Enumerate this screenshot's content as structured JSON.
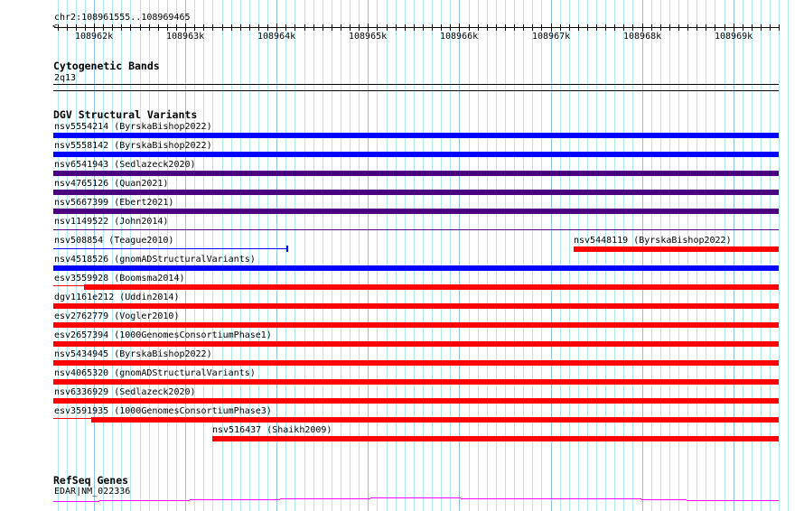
{
  "ruler": {
    "location": "chr2:108961555..108969465",
    "ticks": [
      "108962k",
      "108963k",
      "108964k",
      "108965k",
      "108966k",
      "108967k",
      "108968k",
      "108969k"
    ]
  },
  "cytobands": {
    "title": "Cytogenetic Bands",
    "band": "2q13"
  },
  "dgv": {
    "title": "DGV Structural Variants",
    "variants": [
      {
        "label": "nsv5554214 (ByrskaBishop2022)",
        "color": "#0000ff"
      },
      {
        "label": "nsv5558142 (ByrskaBishop2022)",
        "color": "#0000ff"
      },
      {
        "label": "nsv6541943 (Sedlazeck2020)",
        "color": "#4b0082"
      },
      {
        "label": "nsv4765126 (Quan2021)",
        "color": "#4b0082"
      },
      {
        "label": "nsv5667399 (Ebert2021)",
        "color": "#4b0082"
      },
      {
        "label": "nsv1149522 (John2014)",
        "color": "#4b0082"
      },
      {
        "label": "nsv508854 (Teague2010)",
        "color": "#0000ff"
      },
      {
        "label": "nsv5448119 (ByrskaBishop2022)",
        "color": "#ff0000"
      },
      {
        "label": "nsv4518526 (gnomADStructuralVariants)",
        "color": "#0000ff"
      },
      {
        "label": "esv3559928 (Boomsma2014)",
        "color": "#ff0000"
      },
      {
        "label": "dgv1161e212 (Uddin2014)",
        "color": "#ff0000"
      },
      {
        "label": "esv2762779 (Vogler2010)",
        "color": "#ff0000"
      },
      {
        "label": "esv2657394 (1000GenomesConsortiumPhase1)",
        "color": "#ff0000"
      },
      {
        "label": "nsv5434945 (ByrskaBishop2022)",
        "color": "#ff0000"
      },
      {
        "label": "nsv4065320 (gnomADStructuralVariants)",
        "color": "#ff0000"
      },
      {
        "label": "nsv6336929 (Sedlazeck2020)",
        "color": "#ff0000"
      },
      {
        "label": "esv3591935 (1000GenomesConsortiumPhase3)",
        "color": "#ff0000"
      },
      {
        "label": "nsv516437 (Shaikh2009)",
        "color": "#ff0000"
      }
    ]
  },
  "refseq": {
    "title": "RefSeq Genes",
    "gene": "EDAR|NM_022336",
    "color": "#ff00ff"
  }
}
